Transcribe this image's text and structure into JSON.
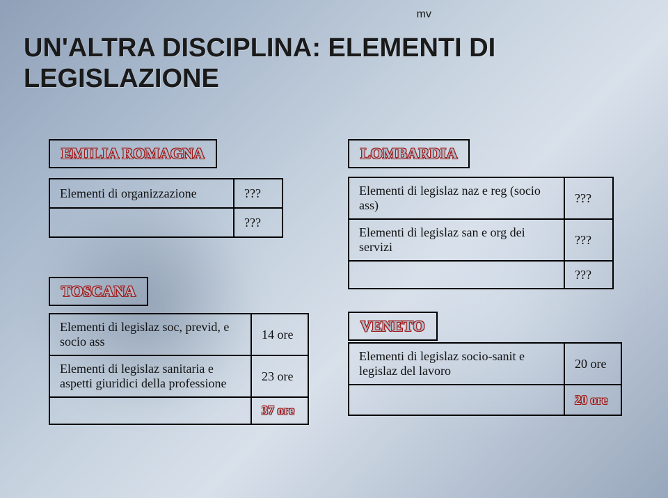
{
  "corner": "mv",
  "title_line1": "UN'ALTRA DISCIPLINA: ELEMENTI DI",
  "title_line2": "LEGISLAZIONE",
  "emilia": {
    "label": "EMILIA ROMAGNA",
    "rows": [
      {
        "text": "Elementi di organizzazione",
        "val": "???"
      },
      {
        "text": "",
        "val": "???"
      }
    ]
  },
  "lombardia": {
    "label": "LOMBARDIA",
    "rows": [
      {
        "text": "Elementi di legislaz naz e reg (socio ass)",
        "val": "???"
      },
      {
        "text": "Elementi di legislaz san e org dei servizi",
        "val": "???"
      },
      {
        "text": "",
        "val": "???"
      }
    ]
  },
  "toscana": {
    "label": "TOSCANA",
    "rows": [
      {
        "text": "Elementi di legislaz soc, previd, e socio ass",
        "val": "14 ore"
      },
      {
        "text": "Elementi di legislaz sanitaria e aspetti giuridici della professione",
        "val": "23 ore"
      },
      {
        "text": "",
        "val": "37 ore"
      }
    ]
  },
  "veneto": {
    "label": "VENETO",
    "rows": [
      {
        "text": "Elementi di legislaz socio-sanit e legislaz del lavoro",
        "val": "20 ore"
      },
      {
        "text": "",
        "val": "20 ore"
      }
    ]
  }
}
